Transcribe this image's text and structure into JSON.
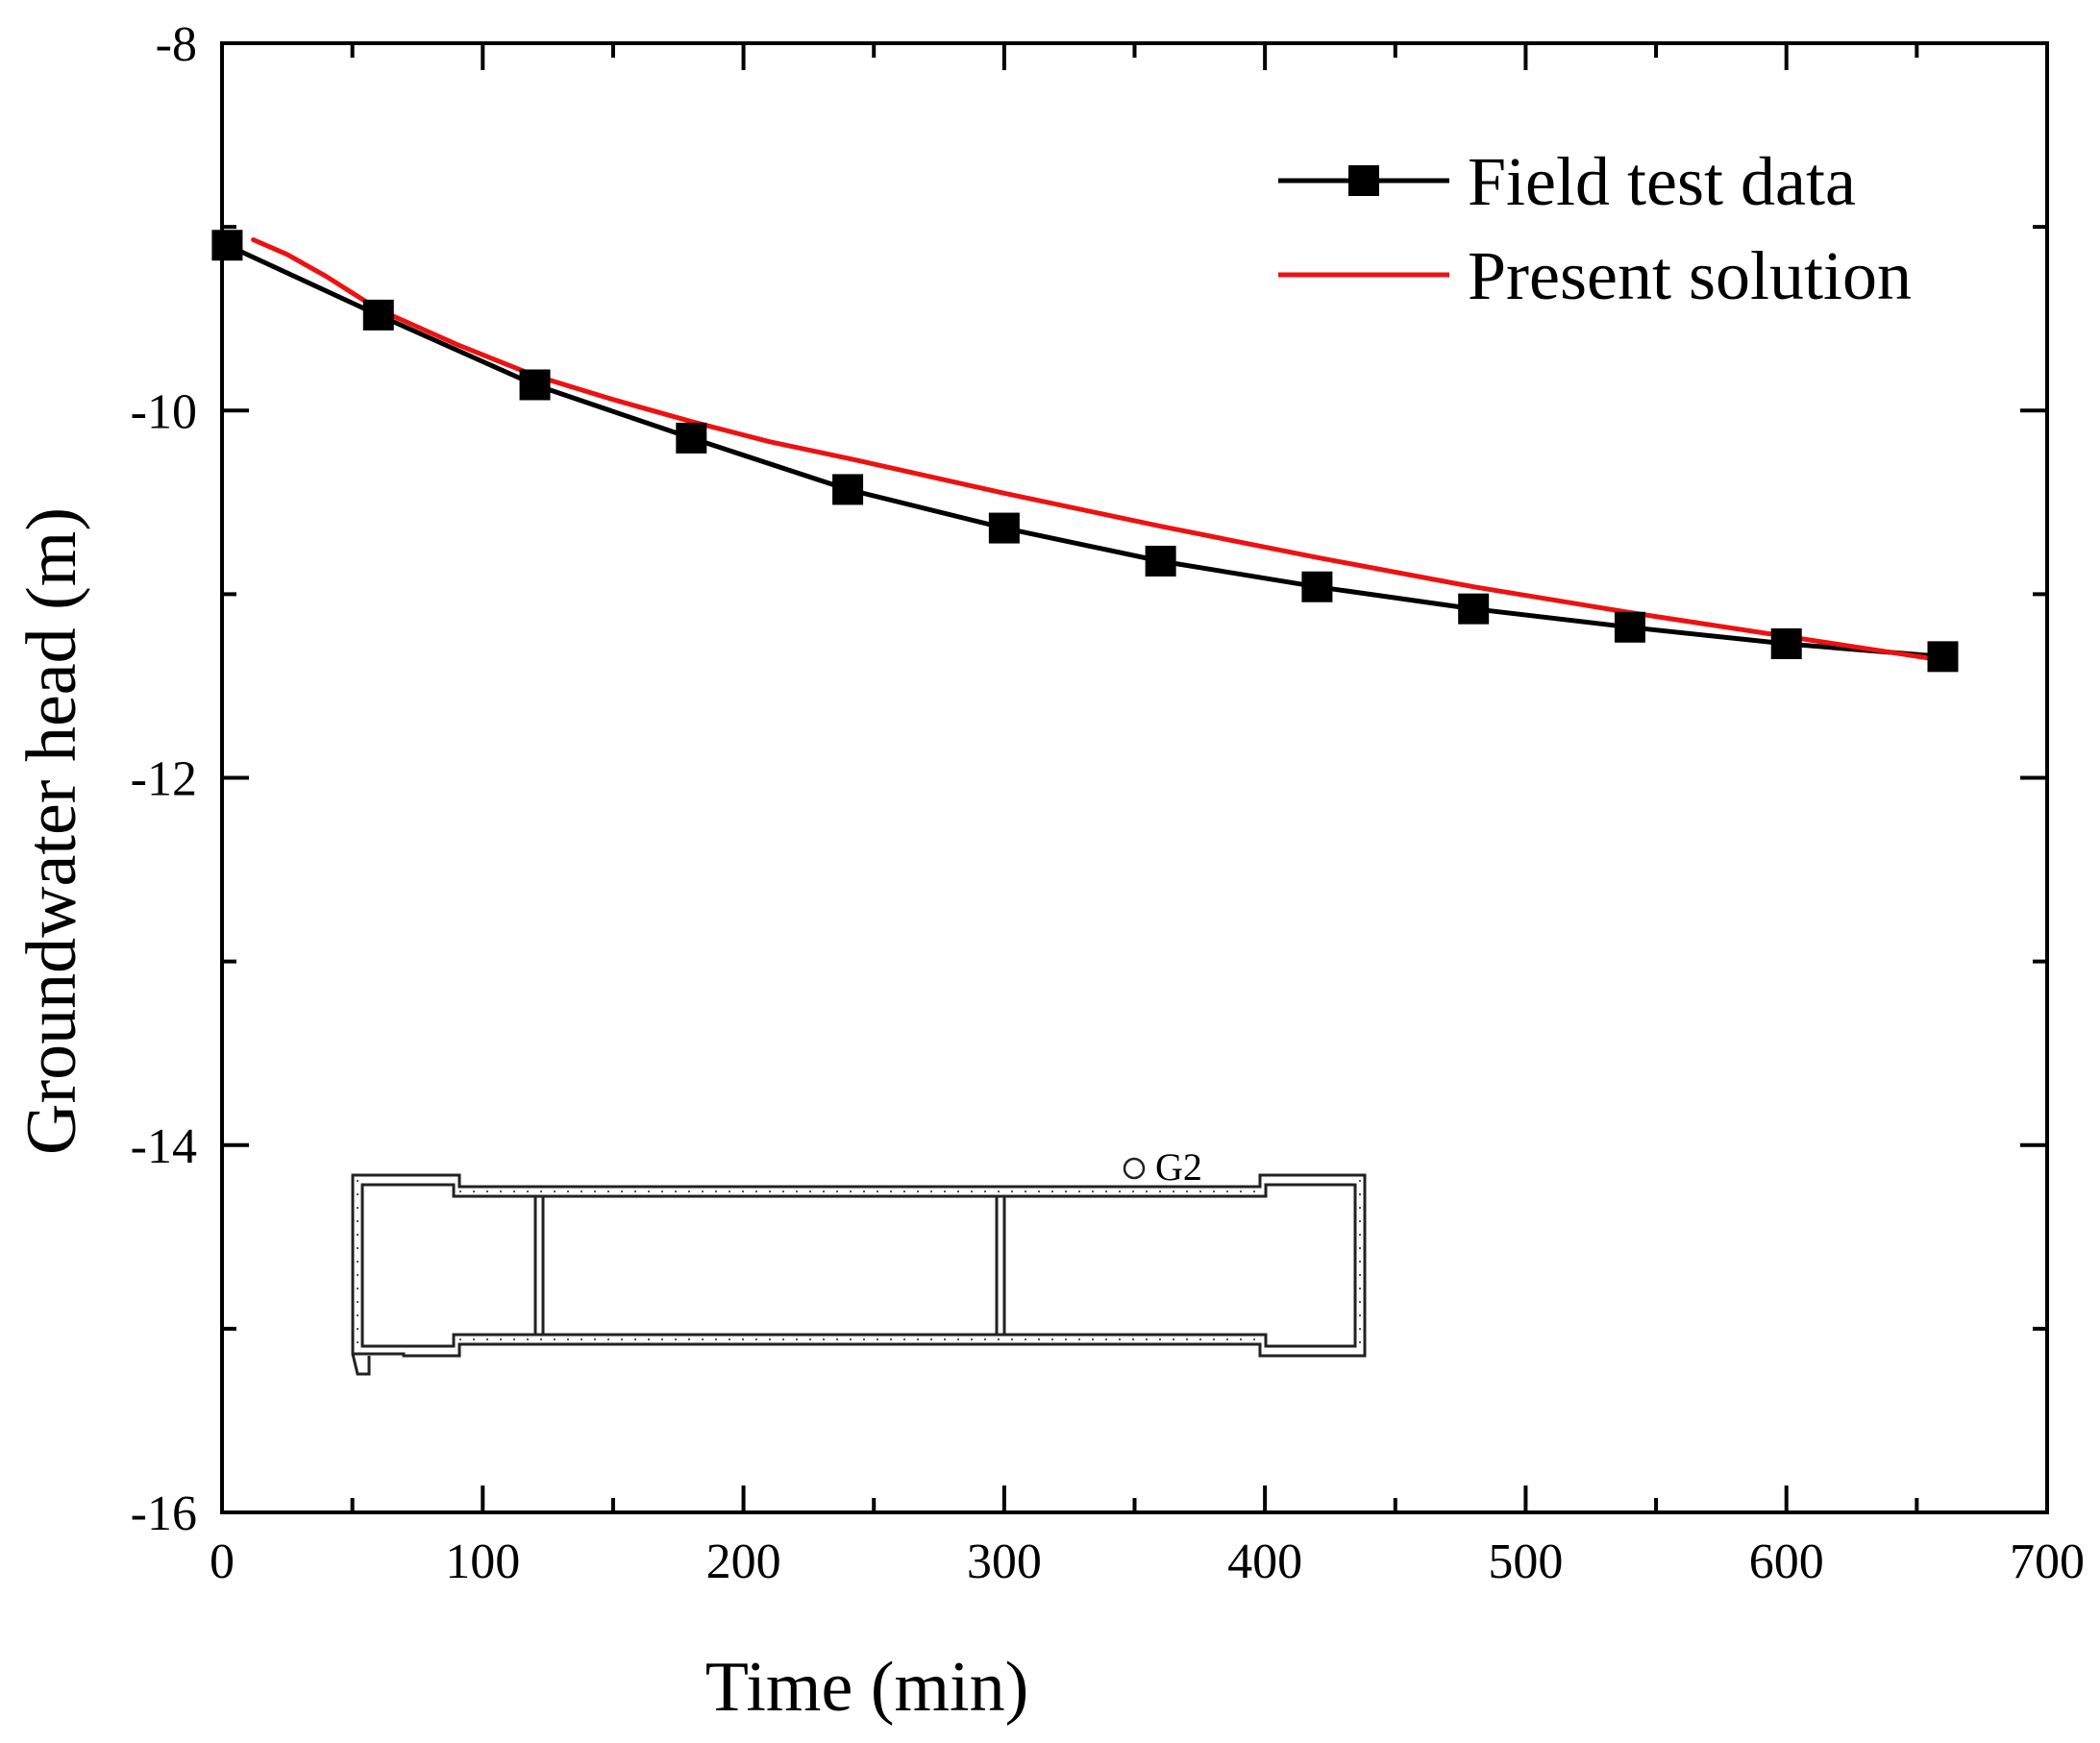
{
  "chart_data": {
    "type": "line",
    "title": "",
    "xlabel": "Time (min)",
    "ylabel": "Groundwater head (m)",
    "xlim": [
      0,
      700
    ],
    "ylim": [
      -16,
      -8
    ],
    "xticks": [
      0,
      100,
      200,
      300,
      400,
      500,
      600,
      700
    ],
    "yticks": [
      -16,
      -14,
      -12,
      -10,
      -8
    ],
    "x_minor_step": 50,
    "y_minor_step": 1,
    "grid": false,
    "legend_position": "top-right",
    "series": [
      {
        "name": "Field test data",
        "color": "#000000",
        "marker": "square",
        "x": [
          2,
          60,
          120,
          180,
          240,
          300,
          360,
          420,
          480,
          540,
          600,
          660
        ],
        "y": [
          -9.1,
          -9.48,
          -9.86,
          -10.15,
          -10.43,
          -10.64,
          -10.82,
          -10.96,
          -11.08,
          -11.18,
          -11.27,
          -11.34
        ]
      },
      {
        "name": "Present solution",
        "color": "#ee1111",
        "marker": "none",
        "x": [
          12,
          25,
          40,
          60,
          90,
          120,
          150,
          180,
          210,
          240,
          300,
          360,
          420,
          480,
          540,
          600,
          660
        ],
        "y": [
          -9.07,
          -9.15,
          -9.27,
          -9.45,
          -9.64,
          -9.81,
          -9.94,
          -10.06,
          -10.17,
          -10.26,
          -10.45,
          -10.63,
          -10.8,
          -10.96,
          -11.1,
          -11.23,
          -11.36
        ]
      }
    ],
    "annotations": [
      {
        "text": "G2"
      }
    ]
  }
}
